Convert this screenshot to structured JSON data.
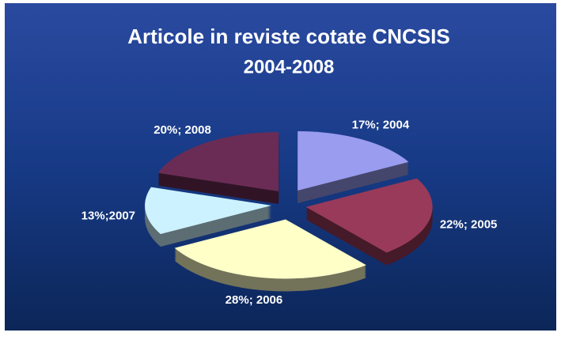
{
  "chart_data": {
    "type": "pie",
    "title": "Articole in reviste cotate CNCSIS",
    "subtitle": "2004-2008",
    "categories": [
      "2004",
      "2005",
      "2006",
      "2007",
      "2008"
    ],
    "values": [
      17,
      22,
      28,
      13,
      20
    ],
    "value_labels": [
      "17%; 2004",
      "22%; 2005",
      "28%; 2006",
      "13%;2007",
      "20%; 2008"
    ],
    "colors": [
      "#9a9cf0",
      "#993a5a",
      "#ffffc8",
      "#ccf2ff",
      "#6a2c55"
    ]
  }
}
